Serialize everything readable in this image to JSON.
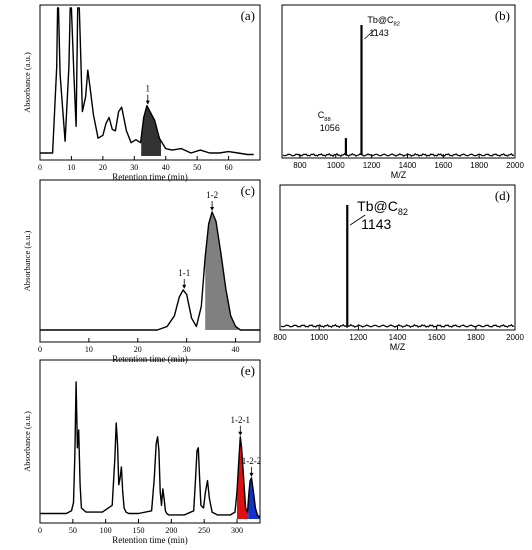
{
  "chart_data": [
    {
      "id": "a",
      "panel_label": "(a)",
      "type": "line",
      "xlabel": "Retention time (min)",
      "ylabel": "Absorbance (a.u.)",
      "xlim": [
        0,
        70
      ],
      "xticks": [
        0,
        10,
        20,
        30,
        40,
        50,
        60
      ],
      "x": [
        0,
        4,
        5.3,
        5.6,
        5.9,
        6.4,
        8,
        9.2,
        9.6,
        10,
        10.8,
        11.5,
        12,
        12.5,
        13.5,
        14.5,
        15.2,
        16,
        17,
        18.5,
        20,
        21,
        22,
        23,
        24,
        25,
        26,
        27.5,
        29,
        30.5,
        32,
        33,
        34,
        35,
        36.5,
        38,
        40,
        42,
        45,
        48,
        51,
        54,
        57,
        60,
        63,
        66,
        68
      ],
      "y": [
        2,
        2,
        60,
        100,
        100,
        55,
        10,
        60,
        100,
        100,
        55,
        20,
        100,
        100,
        30,
        40,
        58,
        45,
        28,
        12,
        14,
        22,
        26,
        18,
        17,
        30,
        33,
        17,
        9,
        11,
        9,
        26,
        34,
        30,
        24,
        12,
        5,
        4,
        5,
        2,
        4,
        2,
        2,
        3,
        2,
        1,
        1
      ],
      "shaded": {
        "x0": 32.2,
        "x1": 38.5
      },
      "annotations": [
        {
          "text": "1",
          "x": 34.3,
          "y": 34
        }
      ]
    },
    {
      "id": "b",
      "panel_label": "(b)",
      "type": "line",
      "xlabel": "M/Z",
      "ylabel": "",
      "xlim": [
        700,
        2000
      ],
      "xticks": [
        800,
        1000,
        1200,
        1400,
        1600,
        1800,
        2000
      ],
      "peaks": [
        {
          "x": 1056,
          "y": 13
        },
        {
          "x": 1143,
          "y": 100
        }
      ],
      "annotations": [
        {
          "label": "Tb@C",
          "sub": "82",
          "value": "1143",
          "x": 1143
        },
        {
          "label": "C",
          "sub": "88",
          "value": "1056",
          "x": 1056
        }
      ]
    },
    {
      "id": "c",
      "panel_label": "(c)",
      "type": "line",
      "xlabel": "Retention time (min)",
      "ylabel": "Absorbance (a.u.)",
      "xlim": [
        0,
        45
      ],
      "xticks": [
        0,
        10,
        20,
        30,
        40
      ],
      "x": [
        0,
        24,
        26,
        27.5,
        28.5,
        29.3,
        30,
        31,
        32,
        33,
        33.8,
        34.5,
        35.2,
        36,
        37,
        38,
        39,
        40,
        41,
        45
      ],
      "y": [
        0,
        0,
        3,
        12,
        28,
        34,
        30,
        10,
        3,
        20,
        62,
        90,
        100,
        92,
        65,
        35,
        12,
        3,
        0,
        0
      ],
      "shaded": {
        "x0": 33.8,
        "x1": 40.5
      },
      "annotations": [
        {
          "text": "1-1",
          "x": 29.5,
          "y": 34
        },
        {
          "text": "1-2",
          "x": 35.2,
          "y": 100
        }
      ]
    },
    {
      "id": "d",
      "panel_label": "(d)",
      "type": "line",
      "xlabel": "M/Z",
      "ylabel": "",
      "xlim": [
        800,
        2000
      ],
      "xticks": [
        800,
        1000,
        1200,
        1400,
        1600,
        1800,
        2000
      ],
      "peaks": [
        {
          "x": 1143,
          "y": 100
        }
      ],
      "annotations": [
        {
          "label": "Tb@C",
          "sub": "82",
          "value": "1143",
          "x": 1143
        }
      ]
    },
    {
      "id": "e",
      "panel_label": "(e)",
      "type": "line",
      "xlabel": "Retention time (min)",
      "ylabel": "Absorbance (a.u.)",
      "xlim": [
        0,
        335
      ],
      "xticks": [
        0,
        50,
        100,
        150,
        200,
        250,
        300
      ],
      "x": [
        0,
        40,
        48,
        51,
        53,
        55,
        57,
        59,
        61,
        63,
        70,
        95,
        110,
        114,
        116,
        118,
        120,
        122,
        124,
        126,
        128,
        131,
        135,
        150,
        170,
        174,
        177,
        179,
        181,
        183,
        185,
        187,
        189,
        191,
        193,
        196,
        200,
        220,
        234,
        237,
        239,
        241,
        243,
        245,
        249,
        252,
        255,
        258,
        262,
        270,
        290,
        297,
        300,
        303,
        305,
        307,
        310,
        313,
        316,
        318,
        320,
        322,
        325,
        328,
        331,
        335
      ],
      "y": [
        4,
        4,
        6,
        12,
        45,
        100,
        52,
        65,
        25,
        8,
        5,
        5,
        10,
        45,
        70,
        55,
        25,
        30,
        38,
        20,
        8,
        5,
        4,
        4,
        6,
        30,
        55,
        60,
        50,
        20,
        10,
        22,
        15,
        6,
        4,
        3,
        3,
        3,
        6,
        30,
        50,
        52,
        30,
        10,
        8,
        20,
        28,
        15,
        5,
        3,
        3,
        5,
        20,
        45,
        60,
        52,
        30,
        8,
        5,
        18,
        28,
        30,
        20,
        8,
        3,
        1
      ],
      "shaded_red": {
        "x0": 300,
        "x1": 317
      },
      "shaded_blue": {
        "x0": 317,
        "x1": 335
      },
      "annotations": [
        {
          "text": "1-2-1",
          "x": 305,
          "y": 60
        },
        {
          "text": "1-2-2",
          "x": 322,
          "y": 30
        }
      ]
    }
  ],
  "colors": {
    "line": "#000000",
    "shade_dark": "#333333",
    "shade_grey": "#808080",
    "shade_red": "#dd1111",
    "shade_blue": "#1133cc"
  }
}
